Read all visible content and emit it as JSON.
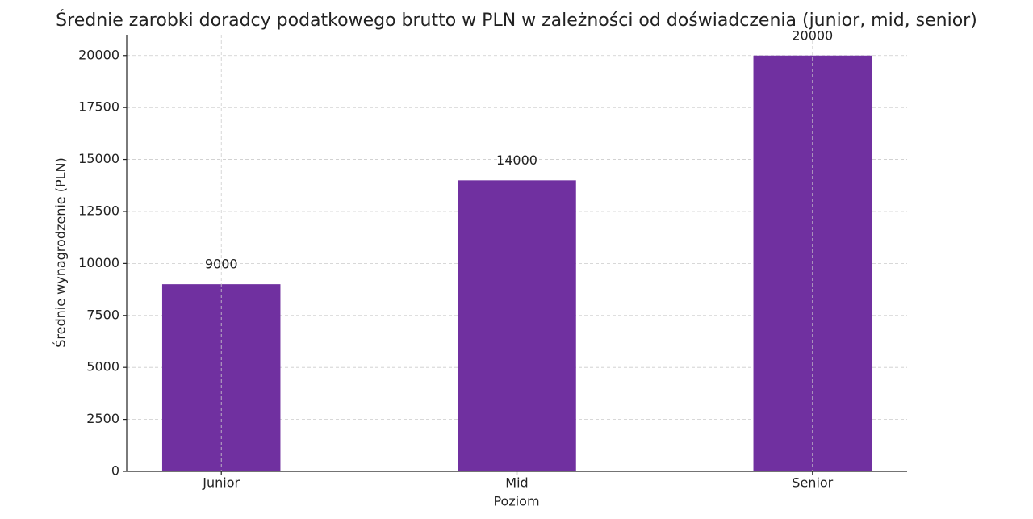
{
  "chart_data": {
    "type": "bar",
    "title": "Średnie zarobki doradcy podatkowego brutto w PLN w zależności od doświadczenia (junior, mid, senior)",
    "x_label": "Poziom",
    "y_label": "Średnie wynagrodzenie (PLN)",
    "categories": [
      "Junior",
      "Mid",
      "Senior"
    ],
    "values": [
      9000,
      14000,
      20000
    ],
    "color": "#7030a0",
    "ylim": [
      0,
      21000
    ],
    "yticks": [
      0,
      2500,
      5000,
      7500,
      10000,
      12500,
      15000,
      17500,
      20000
    ],
    "grid": true
  }
}
